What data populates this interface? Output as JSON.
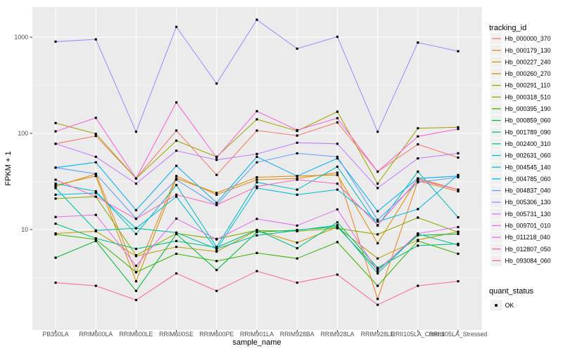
{
  "colors": {
    "panel_bg": "#EBEBEB",
    "grid_major": "#FFFFFF",
    "grid_minor": "#F7F7F7",
    "tick_mark": "#333333",
    "tick_text": "#4D4D4D",
    "title_text": "#000000",
    "legend_key_bg": "#F0F0F0",
    "point": "#000000"
  },
  "chart_data": {
    "type": "line",
    "title": "",
    "xlabel": "sample_name",
    "ylabel": "FPKM + 1",
    "y_scale": "log10",
    "y_ticks": [
      10,
      100,
      1000
    ],
    "y_tick_labels": [
      "10",
      "100",
      "1000"
    ],
    "y_minor_ticks": [
      3.162,
      31.62,
      316.2
    ],
    "ylim": [
      0.9,
      2060
    ],
    "grid": true,
    "legend_position": "right",
    "point_shape": "square",
    "categories": [
      "PB350LA",
      "RRIM600LA",
      "RRIM600LE",
      "RRIM600SE",
      "RRIM600PE",
      "RRIM901LA",
      "RRIM928BA",
      "RRIM928LA",
      "RRIM928LE",
      "RRII105LA_Control",
      "RRII105LA_Stressed"
    ],
    "legend": {
      "tracking_title": "tracking_id",
      "quant_title": "quant_status",
      "quant_items": [
        "OK"
      ]
    },
    "series": [
      {
        "name": "Hb_000000_370",
        "color": "#F8766D",
        "quant_status": "OK",
        "values": [
          78,
          94,
          34,
          107,
          37,
          107,
          95,
          130,
          40,
          77,
          56
        ]
      },
      {
        "name": "Hb_000179_130",
        "color": "#E88526",
        "quant_status": "OK",
        "values": [
          28,
          38,
          3.6,
          36,
          23,
          33,
          34,
          39,
          1.9,
          32,
          25
        ]
      },
      {
        "name": "Hb_000227_240",
        "color": "#D89000",
        "quant_status": "OK",
        "values": [
          29,
          36,
          2.9,
          34,
          24,
          35,
          36,
          37,
          7.2,
          34,
          26
        ]
      },
      {
        "name": "Hb_000260_270",
        "color": "#C49A00",
        "quant_status": "OK",
        "values": [
          9.1,
          9.6,
          5.3,
          6.6,
          5.9,
          9.8,
          7.3,
          10.6,
          5.0,
          7.8,
          9.5
        ]
      },
      {
        "name": "Hb_000291_110",
        "color": "#A3A500",
        "quant_status": "OK",
        "values": [
          128,
          99,
          34,
          84,
          57,
          140,
          106,
          168,
          30,
          113,
          116
        ]
      },
      {
        "name": "Hb_000318_510",
        "color": "#85AD00",
        "quant_status": "OK",
        "values": [
          21,
          22,
          5.4,
          9.1,
          8.0,
          9.8,
          9.6,
          10.3,
          8.9,
          13.3,
          9.4
        ]
      },
      {
        "name": "Hb_000395_190",
        "color": "#39B600",
        "quant_status": "OK",
        "values": [
          8.9,
          7.9,
          3.6,
          5.6,
          4.7,
          5.7,
          5.0,
          7.4,
          2.6,
          7.6,
          5.6
        ]
      },
      {
        "name": "Hb_000859_060",
        "color": "#00BA38",
        "quant_status": "OK",
        "values": [
          5.1,
          7.6,
          2.3,
          9.0,
          3.8,
          9.4,
          9.9,
          10.7,
          3.8,
          8.7,
          9.0
        ]
      },
      {
        "name": "Hb_001789_090",
        "color": "#00BF7D",
        "quant_status": "OK",
        "values": [
          11.5,
          8.1,
          6.3,
          7.6,
          6.5,
          9.9,
          6.4,
          11.9,
          4.0,
          6.8,
          7.1
        ]
      },
      {
        "name": "Hb_002400_310",
        "color": "#00C1A3",
        "quant_status": "OK",
        "values": [
          27,
          9.8,
          10.3,
          9.3,
          6.3,
          8.7,
          9.8,
          11.1,
          3.5,
          9.0,
          6.9
        ]
      },
      {
        "name": "Hb_002631_060",
        "color": "#00BFC4",
        "quant_status": "OK",
        "values": [
          30,
          25,
          9.0,
          29,
          6.6,
          31,
          26,
          45,
          11.0,
          40,
          13.4
        ]
      },
      {
        "name": "Hb_004545_140",
        "color": "#00BADE",
        "quant_status": "OK",
        "values": [
          23,
          24,
          10.3,
          22,
          6.2,
          27,
          23,
          26,
          12.1,
          16.3,
          37
        ]
      },
      {
        "name": "Hb_004785_060",
        "color": "#00B0F6",
        "quant_status": "OK",
        "values": [
          44,
          50,
          15.9,
          46,
          19,
          57,
          36,
          55,
          15.5,
          34,
          36
        ]
      },
      {
        "name": "Hb_004837_040",
        "color": "#619CFF",
        "quant_status": "OK",
        "values": [
          44,
          38,
          13.0,
          33,
          18,
          50,
          62,
          57,
          12.6,
          31,
          35
        ]
      },
      {
        "name": "Hb_005306_130",
        "color": "#9590FF",
        "quant_status": "OK",
        "values": [
          900,
          950,
          104,
          1280,
          330,
          1520,
          760,
          1010,
          104,
          880,
          715
        ]
      },
      {
        "name": "Hb_005731_130",
        "color": "#C77CFF",
        "quant_status": "OK",
        "values": [
          78,
          57,
          30,
          66,
          53,
          61,
          80,
          78,
          27,
          55,
          62
        ]
      },
      {
        "name": "Hb_009701_010",
        "color": "#E76BF3",
        "quant_status": "OK",
        "values": [
          13.5,
          14.2,
          4.2,
          13.0,
          7.9,
          12.9,
          11.0,
          16.2,
          3.7,
          9.1,
          10.6
        ]
      },
      {
        "name": "Hb_011218_040",
        "color": "#FA62DB",
        "quant_status": "OK",
        "values": [
          105,
          145,
          34,
          210,
          56,
          170,
          108,
          144,
          40,
          93,
          111
        ]
      },
      {
        "name": "Hb_012807_050",
        "color": "#FF62BC",
        "quant_status": "OK",
        "values": [
          33,
          22,
          12.9,
          23,
          18,
          28,
          33,
          30,
          11.1,
          33,
          26
        ]
      },
      {
        "name": "Hb_093084_060",
        "color": "#FF6A98",
        "quant_status": "OK",
        "values": [
          2.8,
          2.6,
          1.85,
          3.5,
          2.3,
          3.7,
          2.8,
          3.4,
          1.65,
          2.6,
          2.9
        ]
      }
    ]
  }
}
